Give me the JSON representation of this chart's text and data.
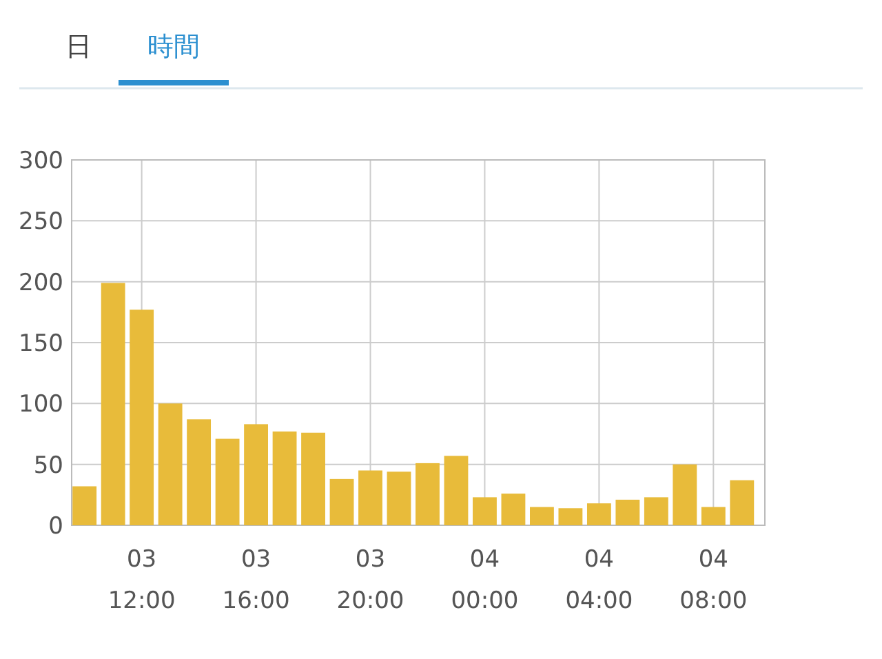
{
  "chart_data": {
    "type": "bar",
    "annotations": [
      "日",
      "時間"
    ],
    "categories": [
      null,
      null,
      "03\n12:00",
      null,
      null,
      null,
      "03\n16:00",
      null,
      null,
      null,
      "03\n20:00",
      null,
      null,
      null,
      "04\n00:00",
      null,
      null,
      null,
      "04\n04:00",
      null,
      null,
      null,
      "04\n08:00",
      null
    ],
    "values": [
      32,
      199,
      177,
      100,
      87,
      71,
      83,
      77,
      76,
      38,
      45,
      44,
      51,
      57,
      23,
      26,
      15,
      14,
      18,
      21,
      23,
      50,
      15,
      37
    ],
    "color": "#e8bb3a",
    "ylim": [
      0,
      300
    ],
    "yticks": [
      0,
      50,
      100,
      150,
      200,
      250,
      300
    ],
    "grid": true
  }
}
